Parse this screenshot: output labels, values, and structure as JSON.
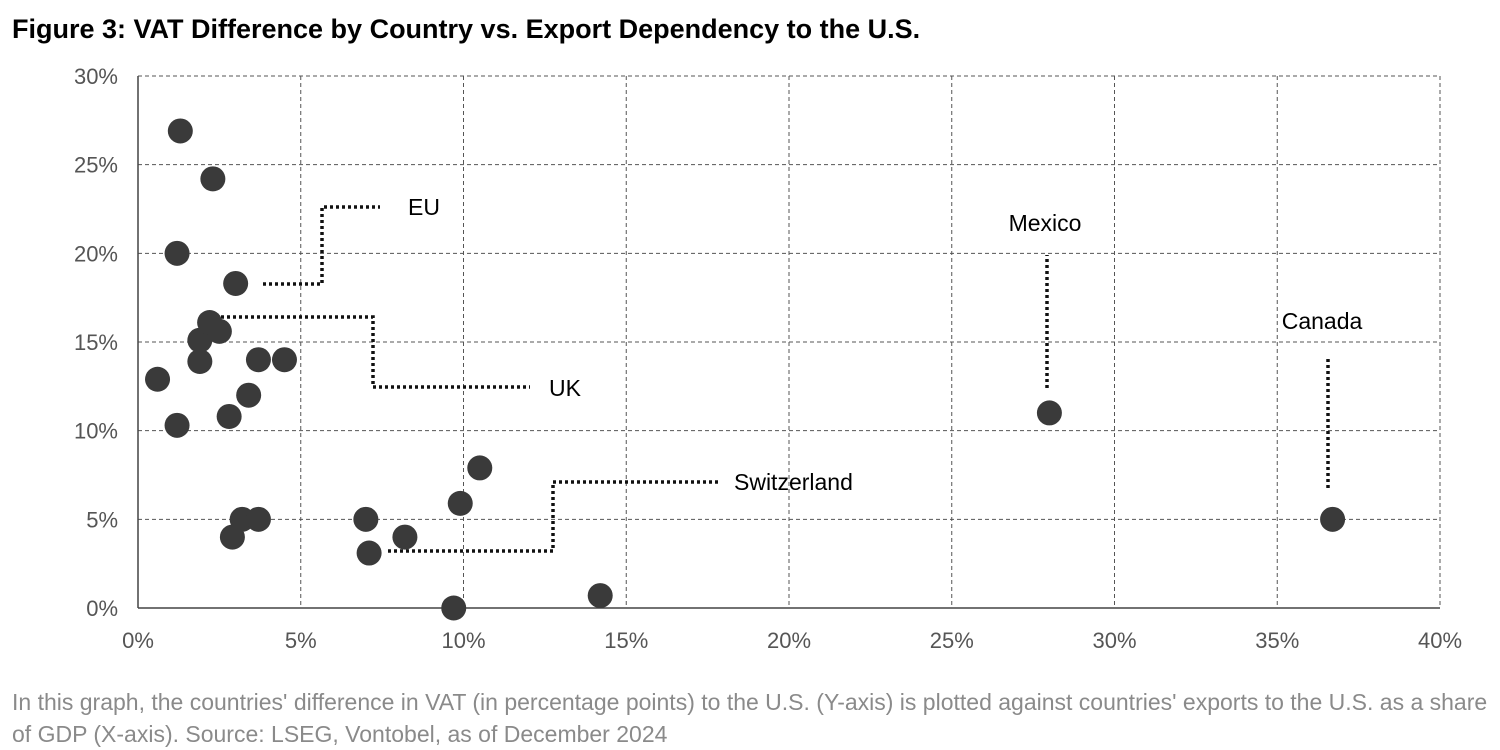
{
  "title": "Figure 3: VAT Difference by Country vs. Export Dependency to the U.S.",
  "caption": "In this graph, the countries' difference in VAT (in percentage points) to the U.S. (Y-axis) is plotted against countries' exports to the U.S. as a share of GDP (X-axis). Source: LSEG, Vontobel, as of December 2024",
  "colors": {
    "point": "#3a3a3a",
    "grid": "#555555",
    "axis": "#444444",
    "tick_text": "#555555",
    "caption": "#8a8a8a"
  },
  "chart_data": {
    "type": "scatter",
    "title": "Figure 3: VAT Difference by Country vs. Export Dependency to the U.S.",
    "xlabel": "",
    "ylabel": "",
    "xlim": [
      0,
      40
    ],
    "ylim": [
      0,
      30
    ],
    "x_ticks": [
      "0%",
      "5%",
      "10%",
      "15%",
      "20%",
      "25%",
      "30%",
      "35%",
      "40%"
    ],
    "y_ticks": [
      "0%",
      "5%",
      "10%",
      "15%",
      "20%",
      "25%",
      "30%"
    ],
    "grid": true,
    "legend": "none",
    "points": [
      {
        "x": 0.6,
        "y": 12.9
      },
      {
        "x": 1.3,
        "y": 26.9
      },
      {
        "x": 1.2,
        "y": 20.0
      },
      {
        "x": 1.2,
        "y": 10.3
      },
      {
        "x": 1.9,
        "y": 15.1
      },
      {
        "x": 1.9,
        "y": 13.9
      },
      {
        "x": 2.3,
        "y": 24.2
      },
      {
        "x": 2.2,
        "y": 16.1
      },
      {
        "x": 2.5,
        "y": 15.6
      },
      {
        "x": 2.8,
        "y": 10.8
      },
      {
        "x": 2.9,
        "y": 4.0
      },
      {
        "x": 3.0,
        "y": 18.3
      },
      {
        "x": 3.2,
        "y": 5.0
      },
      {
        "x": 3.4,
        "y": 12.0
      },
      {
        "x": 3.7,
        "y": 14.0
      },
      {
        "x": 3.7,
        "y": 5.0
      },
      {
        "x": 4.5,
        "y": 14.0
      },
      {
        "x": 7.0,
        "y": 5.0
      },
      {
        "x": 7.1,
        "y": 3.1
      },
      {
        "x": 8.2,
        "y": 4.0
      },
      {
        "x": 9.7,
        "y": 0.0
      },
      {
        "x": 9.9,
        "y": 5.9
      },
      {
        "x": 10.5,
        "y": 7.9
      },
      {
        "x": 14.2,
        "y": 0.7
      },
      {
        "x": 28.0,
        "y": 11.0
      },
      {
        "x": 36.7,
        "y": 5.0
      }
    ],
    "annotations": [
      {
        "label": "EU",
        "point": {
          "x": 3.0,
          "y": 18.3
        }
      },
      {
        "label": "UK",
        "point": {
          "x": 2.5,
          "y": 15.6
        }
      },
      {
        "label": "Switzerland",
        "point": {
          "x": 7.1,
          "y": 3.1
        }
      },
      {
        "label": "Mexico",
        "point": {
          "x": 28.0,
          "y": 11.0
        }
      },
      {
        "label": "Canada",
        "point": {
          "x": 36.7,
          "y": 5.0
        }
      }
    ]
  }
}
